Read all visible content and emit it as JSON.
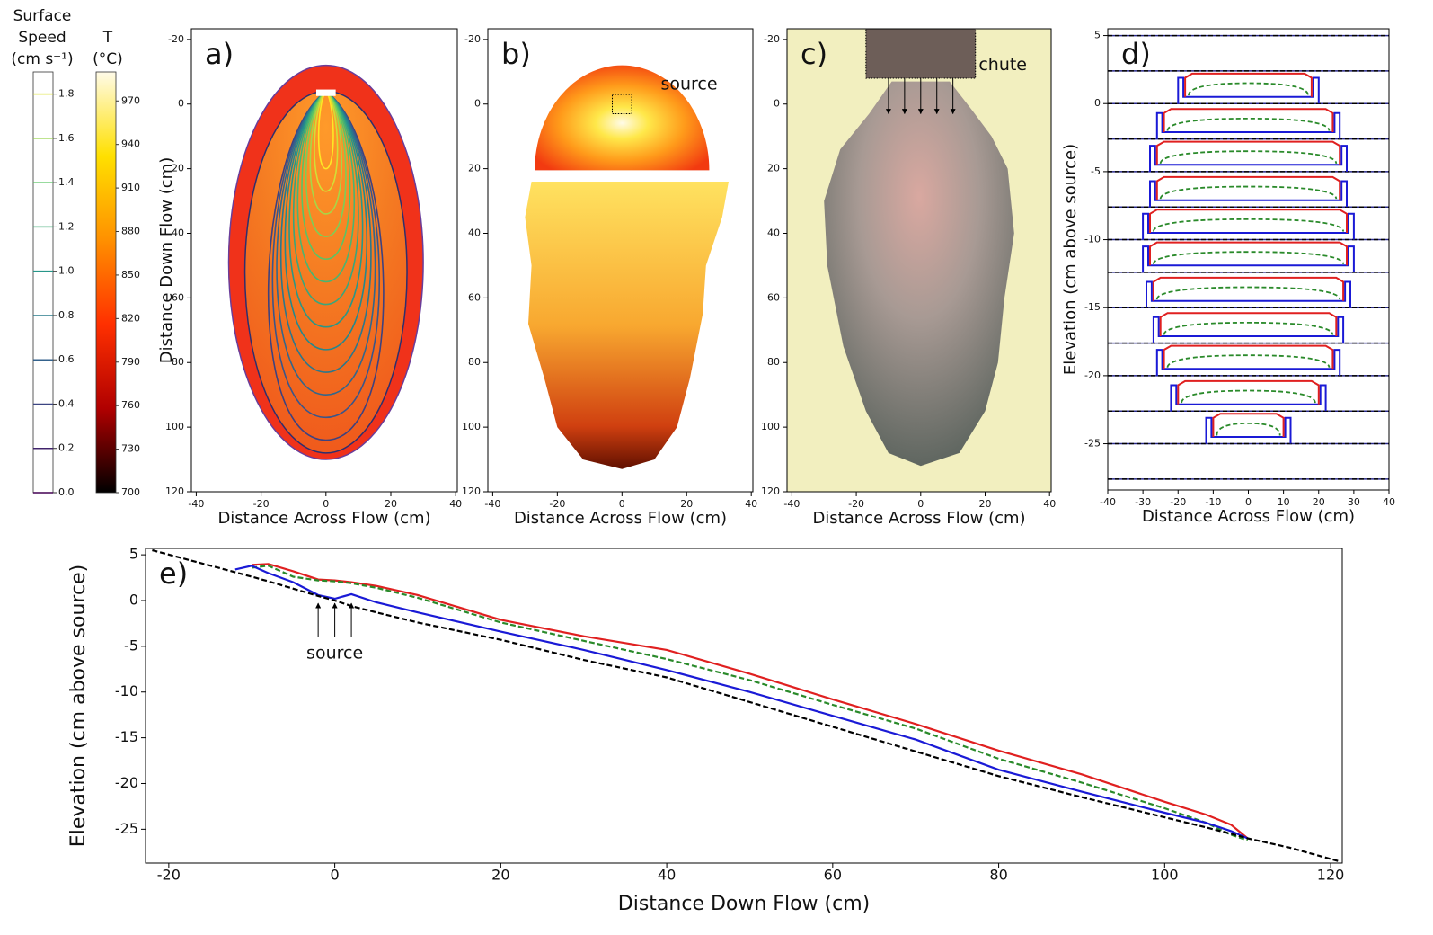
{
  "chart_data": [
    {
      "type": "colorbar",
      "title_lines": [
        "Surface",
        "Speed",
        "(cm s⁻¹)"
      ],
      "ylim": [
        0,
        1.9
      ],
      "yticks": [
        {
          "value": 0,
          "label": "0.0"
        },
        {
          "value": 0.2,
          "label": "0.2"
        },
        {
          "value": 0.4,
          "label": "0.4"
        },
        {
          "value": 0.6,
          "label": "0.6"
        },
        {
          "value": 0.8,
          "label": "0.8"
        },
        {
          "value": 1,
          "label": "1.0"
        },
        {
          "value": 1.2,
          "label": "1.2"
        },
        {
          "value": 1.4,
          "label": "1.4"
        },
        {
          "value": 1.6,
          "label": "1.6"
        },
        {
          "value": 1.8,
          "label": "1.8"
        }
      ],
      "colormap": [
        "#440154",
        "#3b528b",
        "#21908d",
        "#5dc863",
        "#fde725"
      ]
    },
    {
      "type": "colorbar",
      "title_lines": [
        "T",
        "(°C)"
      ],
      "ylim": [
        700,
        990
      ],
      "yticks": [
        700,
        730,
        760,
        790,
        820,
        850,
        880,
        910,
        940,
        970
      ],
      "colormap": [
        "#000000",
        "#b00000",
        "#ff3000",
        "#ff9000",
        "#ffe000",
        "#fffbe8"
      ]
    },
    {
      "type": "contour",
      "panel_label": "a)",
      "xlabel": "Distance Across Flow (cm)",
      "ylabel": "Distance Down Flow (cm)",
      "xlim": [
        -41.5,
        40.5
      ],
      "ylim": [
        120,
        -23.3
      ],
      "xticks": [
        -40,
        -20,
        0,
        20,
        40
      ],
      "yticks": [
        -20,
        0,
        20,
        40,
        60,
        80,
        100,
        120
      ]
    },
    {
      "type": "thermal",
      "panel_label": "b)",
      "annotation": "source",
      "xlabel": "Distance Across Flow (cm)",
      "xlim": [
        -41.5,
        40.5
      ],
      "ylim": [
        120,
        -23.3
      ],
      "xticks": [
        -40,
        -20,
        0,
        20,
        40
      ],
      "yticks": [
        -20,
        0,
        20,
        40,
        60,
        80,
        100,
        120
      ]
    },
    {
      "type": "photo",
      "panel_label": "c)",
      "annotation": "chute",
      "xlabel": "Distance Across Flow (cm)",
      "xlim": [
        -41.5,
        40.5
      ],
      "ylim": [
        120,
        -23.3
      ],
      "xticks": [
        -40,
        -20,
        0,
        20,
        40
      ],
      "yticks": [
        -20,
        0,
        20,
        40,
        60,
        80,
        100,
        120
      ]
    },
    {
      "type": "profiles",
      "panel_label": "d)",
      "xlabel": "Distance Across Flow (cm)",
      "ylabel": "Elevation (cm above source)",
      "xlim": [
        -40,
        40
      ],
      "ylim": [
        -28.4,
        5.5
      ],
      "xticks": [
        -40,
        -30,
        -20,
        -10,
        0,
        10,
        20,
        30,
        40
      ],
      "yticks": [
        -25,
        -20,
        -15,
        -10,
        -5,
        0,
        5
      ],
      "baselines": [
        5,
        2.4,
        0,
        -2.6,
        -5,
        -7.6,
        -10,
        -12.4,
        -15,
        -17.6,
        -20,
        -22.6,
        -25,
        -27.6
      ],
      "flows": [
        {
          "base": 0,
          "half_width": 20,
          "red": 2.2,
          "green": 1.5,
          "blue": 0.5
        },
        {
          "base": -2.6,
          "half_width": 26,
          "red": -0.4,
          "green": -1.1,
          "blue": -2.1
        },
        {
          "base": -5,
          "half_width": 28,
          "red": -2.8,
          "green": -3.5,
          "blue": -4.5
        },
        {
          "base": -7.6,
          "half_width": 28,
          "red": -5.4,
          "green": -6.1,
          "blue": -7.1
        },
        {
          "base": -10,
          "half_width": 30,
          "red": -7.8,
          "green": -8.5,
          "blue": -9.5
        },
        {
          "base": -12.4,
          "half_width": 30,
          "red": -10.2,
          "green": -10.9,
          "blue": -11.9
        },
        {
          "base": -15,
          "half_width": 29,
          "red": -12.8,
          "green": -13.5,
          "blue": -14.5
        },
        {
          "base": -17.6,
          "half_width": 27,
          "red": -15.4,
          "green": -16.1,
          "blue": -17.1
        },
        {
          "base": -20,
          "half_width": 26,
          "red": -17.8,
          "green": -18.5,
          "blue": -19.5
        },
        {
          "base": -22.6,
          "half_width": 22,
          "red": -20.4,
          "green": -21.1,
          "blue": -22.1
        },
        {
          "base": -25,
          "half_width": 12,
          "red": -22.8,
          "green": -23.5,
          "blue": -24.5
        }
      ]
    },
    {
      "type": "line",
      "panel_label": "e)",
      "annotation": "source",
      "xlabel": "Distance Down Flow (cm)",
      "ylabel": "Elevation (cm above source)",
      "xlim": [
        -22.8,
        121.4
      ],
      "ylim": [
        -28.7,
        5.7
      ],
      "xticks": [
        -20,
        0,
        20,
        40,
        60,
        80,
        100,
        120
      ],
      "yticks": [
        -25,
        -20,
        -15,
        -10,
        -5,
        0,
        5
      ],
      "x": [
        -22,
        -12,
        -10,
        -8,
        -5,
        -2,
        0,
        2,
        5,
        10,
        20,
        30,
        40,
        50,
        60,
        70,
        80,
        90,
        100,
        105,
        108,
        110,
        115,
        121
      ],
      "series": [
        {
          "color": "#000000",
          "linestyle": "dashed",
          "values": [
            5.5,
            3.1,
            2.6,
            2.1,
            1.3,
            0.5,
            0,
            -0.6,
            -1.3,
            -2.4,
            -4.3,
            -6.5,
            -8.4,
            -11.1,
            -13.8,
            -16.5,
            -19.2,
            -21.5,
            -23.7,
            -24.8,
            -25.5,
            -26.0,
            -27.0,
            -28.5
          ]
        },
        {
          "color": "#1a1ad6",
          "linestyle": "solid",
          "values": [
            null,
            3.4,
            3.8,
            3.0,
            2.0,
            0.6,
            0.2,
            0.7,
            -0.2,
            -1.3,
            -3.4,
            -5.4,
            -7.6,
            -10.0,
            -12.6,
            -15.2,
            -18.5,
            -20.9,
            -23.2,
            -24.3,
            -25.2,
            -26.0,
            null,
            null
          ]
        },
        {
          "color": "#2a8a2a",
          "linestyle": "dashed",
          "values": [
            null,
            null,
            3.6,
            3.8,
            2.6,
            2.2,
            2.1,
            1.9,
            1.4,
            0.3,
            -2.4,
            -4.4,
            -6.4,
            -8.7,
            -11.4,
            -14.0,
            -17.3,
            -19.9,
            -22.7,
            -24.3,
            -25.6,
            -26.2,
            null,
            null
          ]
        },
        {
          "color": "#e02020",
          "linestyle": "solid",
          "values": [
            null,
            null,
            3.9,
            4.0,
            3.2,
            2.3,
            2.2,
            2.0,
            1.6,
            0.6,
            -2.1,
            -3.9,
            -5.4,
            -8.0,
            -10.8,
            -13.5,
            -16.4,
            -19.0,
            -22.0,
            -23.4,
            -24.5,
            -26.0,
            null,
            null
          ]
        }
      ]
    }
  ]
}
